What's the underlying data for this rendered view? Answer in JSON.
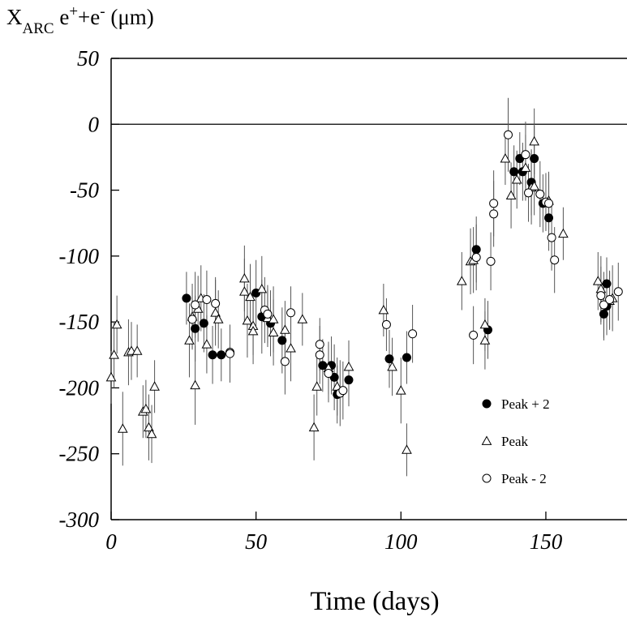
{
  "chart_data": {
    "type": "scatter",
    "y_label_parts": [
      {
        "text": "X"
      },
      {
        "text": "ARC",
        "shift": "sub"
      },
      {
        "text": " e"
      },
      {
        "text": "+",
        "shift": "super"
      },
      {
        "text": "+e"
      },
      {
        "text": "-",
        "shift": "super"
      },
      {
        "text": " (μm)"
      }
    ],
    "x_label": "Time (days)",
    "xlim": [
      0,
      178
    ],
    "ylim": [
      -300,
      50
    ],
    "xticks": [
      0,
      50,
      100,
      150
    ],
    "yticks": [
      50,
      0,
      -50,
      -100,
      -150,
      -200,
      -250,
      -300
    ],
    "hline": 0,
    "legend": "lower right",
    "series": [
      {
        "name": "Peak + 2",
        "marker": "filled-circle",
        "color": "#000000",
        "x": [
          26,
          29,
          32,
          35,
          38,
          50,
          52,
          55,
          59,
          73,
          76,
          77,
          78,
          82,
          96,
          102,
          126,
          130,
          139,
          141,
          142,
          145,
          146,
          149,
          151,
          170,
          171,
          171
        ],
        "values": [
          -132,
          -155,
          -151,
          -175,
          -175,
          -128,
          -146,
          -151,
          -164,
          -183,
          -183,
          -192,
          -205,
          -194,
          -178,
          -177,
          -95,
          -156,
          -36,
          -26,
          -36,
          -44,
          -26,
          -60,
          -71,
          -144,
          -138,
          -121
        ],
        "errors": [
          20,
          25,
          22,
          22,
          20,
          25,
          28,
          25,
          25,
          20,
          22,
          25,
          22,
          20,
          22,
          20,
          25,
          22,
          20,
          20,
          22,
          25,
          25,
          22,
          25,
          20,
          22,
          20
        ]
      },
      {
        "name": "Peak",
        "marker": "triangle",
        "color": "#000000",
        "x": [
          0,
          1,
          2,
          4,
          6,
          7,
          9,
          11,
          12,
          13,
          14,
          15,
          27,
          28,
          29,
          30,
          31,
          33,
          36,
          37,
          46,
          46,
          47,
          48,
          49,
          49,
          52,
          54,
          56,
          56,
          60,
          62,
          66,
          70,
          71,
          75,
          78,
          82,
          94,
          97,
          100,
          102,
          121,
          124,
          125,
          129,
          129,
          136,
          138,
          140,
          143,
          145,
          146,
          146,
          151,
          156,
          168,
          169,
          172,
          173
        ],
        "values": [
          -192,
          -175,
          -152,
          -231,
          -173,
          -172,
          -172,
          -218,
          -216,
          -230,
          -235,
          -199,
          -164,
          -146,
          -198,
          -140,
          -132,
          -167,
          -143,
          -148,
          -117,
          -127,
          -149,
          -131,
          -153,
          -157,
          -125,
          -147,
          -158,
          -148,
          -156,
          -170,
          -148,
          -230,
          -199,
          -185,
          -199,
          -184,
          -141,
          -184,
          -202,
          -247,
          -119,
          -104,
          -103,
          -164,
          -152,
          -26,
          -54,
          -42,
          -33,
          -48,
          -13,
          -47,
          -58,
          -83,
          -119,
          -125,
          -134,
          -132
        ],
        "errors": [
          20,
          25,
          22,
          28,
          25,
          22,
          20,
          20,
          22,
          25,
          22,
          20,
          28,
          25,
          30,
          25,
          25,
          22,
          25,
          22,
          25,
          25,
          28,
          25,
          22,
          25,
          25,
          22,
          25,
          25,
          22,
          25,
          20,
          25,
          22,
          20,
          22,
          20,
          20,
          22,
          25,
          20,
          22,
          25,
          25,
          22,
          20,
          20,
          25,
          22,
          25,
          28,
          25,
          22,
          22,
          20,
          22,
          25,
          22,
          25
        ]
      },
      {
        "name": "Peak - 2",
        "marker": "open-circle",
        "color": "#000000",
        "x": [
          28,
          29,
          33,
          36,
          41,
          41,
          53,
          54,
          60,
          62,
          72,
          72,
          75,
          79,
          80,
          95,
          104,
          125,
          126,
          131,
          132,
          132,
          137,
          143,
          144,
          148,
          150,
          151,
          152,
          153,
          169,
          170,
          172,
          175
        ],
        "values": [
          -148,
          -137,
          -133,
          -136,
          -173,
          -174,
          -141,
          -144,
          -180,
          -143,
          -175,
          -167,
          -189,
          -204,
          -202,
          -152,
          -159,
          -160,
          -101,
          -104,
          -68,
          -60,
          -8,
          -23,
          -52,
          -53,
          -59,
          -60,
          -86,
          -103,
          -130,
          -137,
          -133,
          -127
        ],
        "errors": [
          22,
          25,
          22,
          20,
          20,
          22,
          25,
          22,
          25,
          20,
          22,
          20,
          22,
          25,
          22,
          20,
          22,
          22,
          25,
          22,
          25,
          25,
          28,
          25,
          22,
          25,
          22,
          22,
          25,
          25,
          22,
          25,
          22,
          22
        ]
      }
    ]
  }
}
